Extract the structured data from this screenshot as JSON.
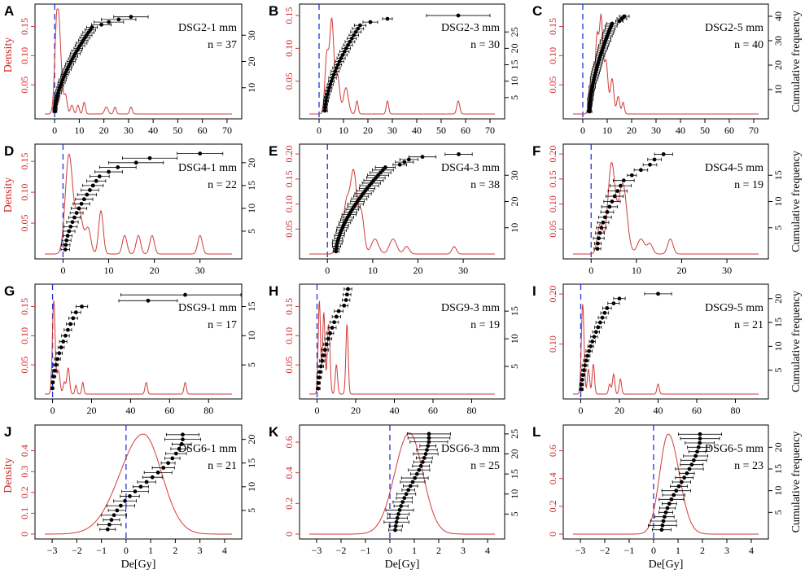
{
  "figure": {
    "x_axis_label": "De[Gy]",
    "left_axis_label": "Density",
    "right_axis_label": "Cumulative frequency"
  },
  "colors": {
    "density_curve": "#d23a3a",
    "zero_line": "#2233dd",
    "points": "#000000"
  },
  "chart_data": [
    {
      "type": "line",
      "panel": "A",
      "label": "DSG2-1 mm",
      "n_text": "n = 37",
      "n": 37,
      "xlim": [
        -4,
        72
      ],
      "xticks": [
        0,
        10,
        20,
        30,
        40,
        50,
        60,
        70
      ],
      "ylim": [
        0,
        0.18
      ],
      "yticks": [
        0.05,
        0.1,
        0.15
      ],
      "freq_ticks": [
        10,
        20,
        30
      ],
      "freq_max": 40,
      "peaks": [
        [
          1,
          0.16,
          0.9
        ],
        [
          2.3,
          0.07,
          0.9
        ],
        [
          4.5,
          0.03,
          0.6
        ],
        [
          7,
          0.015,
          0.6
        ],
        [
          9.5,
          0.015,
          0.5
        ],
        [
          12,
          0.02,
          0.5
        ],
        [
          21,
          0.012,
          0.7
        ],
        [
          24.5,
          0.012,
          0.5
        ],
        [
          31,
          0.012,
          0.5
        ]
      ],
      "last_points": [
        [
          19,
          4
        ],
        [
          22,
          6
        ],
        [
          26,
          7
        ],
        [
          31,
          7
        ]
      ]
    },
    {
      "type": "line",
      "panel": "B",
      "label": "DSG2-3 mm",
      "n_text": "n = 30",
      "n": 30,
      "xlim": [
        -4,
        72
      ],
      "xticks": [
        0,
        10,
        20,
        30,
        40,
        50,
        60,
        70
      ],
      "ylim": [
        0,
        0.16
      ],
      "yticks": [
        0.05,
        0.1,
        0.15
      ],
      "freq_ticks": [
        5,
        10,
        15,
        20,
        25
      ],
      "freq_max": 32,
      "peaks": [
        [
          3.2,
          0.09,
          0.8
        ],
        [
          5.2,
          0.14,
          0.8
        ],
        [
          7.5,
          0.06,
          0.9
        ],
        [
          11,
          0.04,
          1.0
        ],
        [
          15.5,
          0.02,
          0.5
        ],
        [
          28,
          0.02,
          0.5
        ],
        [
          57,
          0.02,
          0.6
        ]
      ],
      "last_points": [
        [
          21,
          3
        ],
        [
          28,
          2
        ],
        [
          57,
          13
        ]
      ]
    },
    {
      "type": "line",
      "panel": "C",
      "label": "DSG2-5 mm",
      "n_text": "n = 40",
      "n": 40,
      "xlim": [
        -4,
        72
      ],
      "xticks": [
        0,
        10,
        20,
        30,
        40,
        50,
        60,
        70
      ],
      "ylim": [
        0,
        0.18
      ],
      "yticks": [
        0.05,
        0.1,
        0.15
      ],
      "freq_ticks": [
        10,
        20,
        30,
        40
      ],
      "freq_max": 43,
      "peaks": [
        [
          3.5,
          0.05,
          0.8
        ],
        [
          5.8,
          0.13,
          0.7
        ],
        [
          7.5,
          0.16,
          0.7
        ],
        [
          9.5,
          0.09,
          0.8
        ],
        [
          12,
          0.06,
          0.7
        ],
        [
          14.5,
          0.03,
          0.6
        ],
        [
          16.5,
          0.02,
          0.5
        ]
      ],
      "last_points": [
        [
          15,
          1.5
        ],
        [
          16,
          2
        ],
        [
          17,
          2
        ]
      ]
    },
    {
      "type": "line",
      "panel": "D",
      "label": "DSG4-1 mm",
      "n_text": "n = 22",
      "n": 22,
      "xlim": [
        -4,
        37
      ],
      "xticks": [
        0,
        10,
        20,
        30
      ],
      "ylim": [
        0,
        0.17
      ],
      "yticks": [
        0.05,
        0.1,
        0.15
      ],
      "freq_ticks": [
        5,
        10,
        15,
        20
      ],
      "freq_max": 23,
      "peaks": [
        [
          1.3,
          0.16,
          0.8
        ],
        [
          3.5,
          0.07,
          0.8
        ],
        [
          5.5,
          0.04,
          0.6
        ],
        [
          8.3,
          0.07,
          0.5
        ],
        [
          13.5,
          0.03,
          0.5
        ],
        [
          16.5,
          0.03,
          0.5
        ],
        [
          19.5,
          0.03,
          0.5
        ],
        [
          30,
          0.03,
          0.5
        ]
      ],
      "last_points": [
        [
          10,
          3
        ],
        [
          12,
          4
        ],
        [
          16,
          6
        ],
        [
          19,
          6
        ],
        [
          30,
          5
        ]
      ]
    },
    {
      "type": "line",
      "panel": "E",
      "label": "DSG4-3 mm",
      "n_text": "n = 38",
      "n": 38,
      "xlim": [
        -4,
        37
      ],
      "xticks": [
        0,
        10,
        20,
        30
      ],
      "ylim": [
        0,
        0.21
      ],
      "yticks": [
        0.05,
        0.1,
        0.15,
        0.2
      ],
      "freq_ticks": [
        10,
        20,
        30
      ],
      "freq_max": 40,
      "peaks": [
        [
          2.5,
          0.03,
          0.6
        ],
        [
          4.2,
          0.1,
          0.7
        ],
        [
          5.8,
          0.16,
          0.7
        ],
        [
          7.5,
          0.08,
          0.6
        ],
        [
          10.5,
          0.03,
          0.8
        ],
        [
          14.5,
          0.03,
          0.8
        ],
        [
          17.5,
          0.015,
          0.6
        ],
        [
          28,
          0.015,
          0.5
        ]
      ],
      "last_points": [
        [
          16,
          1.5
        ],
        [
          17,
          2
        ],
        [
          18,
          2
        ],
        [
          21,
          3
        ],
        [
          29,
          3
        ]
      ]
    },
    {
      "type": "line",
      "panel": "F",
      "label": "DSG4-5 mm",
      "n_text": "n = 19",
      "n": 19,
      "xlim": [
        -4,
        37
      ],
      "xticks": [
        0,
        10,
        20,
        30
      ],
      "ylim": [
        0,
        0.21
      ],
      "yticks": [
        0.05,
        0.1,
        0.15,
        0.2
      ],
      "freq_ticks": [
        5,
        10,
        15
      ],
      "freq_max": 20,
      "peaks": [
        [
          2,
          0.06,
          0.6
        ],
        [
          4.5,
          0.18,
          0.8
        ],
        [
          7,
          0.14,
          0.9
        ],
        [
          11,
          0.03,
          0.8
        ],
        [
          13,
          0.02,
          0.6
        ],
        [
          17.5,
          0.03,
          0.6
        ]
      ],
      "last_points": [
        [
          9,
          1
        ],
        [
          11,
          1.5
        ],
        [
          13,
          1.5
        ],
        [
          14,
          1.5
        ],
        [
          16,
          2
        ]
      ]
    },
    {
      "type": "line",
      "panel": "G",
      "label": "DSG9-1 mm",
      "n_text": "n = 17",
      "n": 17,
      "xlim": [
        -4,
        92
      ],
      "xticks": [
        0,
        20,
        40,
        60,
        80
      ],
      "ylim": [
        0,
        0.18
      ],
      "yticks": [
        0.05,
        0.1,
        0.15
      ],
      "freq_ticks": [
        5,
        10,
        15
      ],
      "freq_max": 18,
      "peaks": [
        [
          0.6,
          0.16,
          0.7
        ],
        [
          3,
          0.04,
          0.8
        ],
        [
          6,
          0.02,
          0.6
        ],
        [
          8,
          0.045,
          0.7
        ],
        [
          12,
          0.015,
          0.5
        ],
        [
          15.5,
          0.02,
          0.5
        ],
        [
          48,
          0.02,
          0.6
        ],
        [
          68,
          0.02,
          0.6
        ]
      ],
      "last_points": [
        [
          15,
          3
        ],
        [
          49,
          15
        ],
        [
          68,
          33
        ]
      ]
    },
    {
      "type": "line",
      "panel": "H",
      "label": "DSG9-3 mm",
      "n_text": "n = 19",
      "n": 19,
      "xlim": [
        -4,
        92
      ],
      "xticks": [
        0,
        20,
        40,
        60,
        80
      ],
      "ylim": [
        0,
        0.18
      ],
      "yticks": [
        0.05,
        0.1,
        0.15
      ],
      "freq_ticks": [
        5,
        10,
        15
      ],
      "freq_max": 19,
      "peaks": [
        [
          1.2,
          0.16,
          0.6
        ],
        [
          3.5,
          0.14,
          0.6
        ],
        [
          6,
          0.12,
          0.7
        ],
        [
          10,
          0.05,
          0.6
        ],
        [
          15.5,
          0.12,
          0.6
        ]
      ],
      "last_points": [
        [
          14,
          2
        ],
        [
          15,
          2
        ],
        [
          15.5,
          2
        ],
        [
          16,
          2
        ]
      ]
    },
    {
      "type": "line",
      "panel": "I",
      "label": "DSG9-5 mm",
      "n_text": "n = 21",
      "n": 21,
      "xlim": [
        -4,
        92
      ],
      "xticks": [
        0,
        20,
        40,
        60,
        80
      ],
      "ylim": [
        0,
        0.21
      ],
      "yticks": [
        0.1,
        0.2
      ],
      "freq_ticks": [
        5,
        10,
        15,
        20
      ],
      "freq_max": 22,
      "peaks": [
        [
          1,
          0.18,
          0.7
        ],
        [
          4,
          0.05,
          0.6
        ],
        [
          6.5,
          0.06,
          0.6
        ],
        [
          15,
          0.02,
          0.6
        ],
        [
          17,
          0.04,
          0.6
        ],
        [
          20.5,
          0.03,
          0.6
        ],
        [
          40,
          0.02,
          0.6
        ]
      ],
      "last_points": [
        [
          17,
          3
        ],
        [
          20,
          3
        ],
        [
          40,
          7
        ]
      ]
    },
    {
      "type": "line",
      "panel": "J",
      "label": "DSG6-1 mm",
      "n_text": "n = 21",
      "n": 21,
      "xlim": [
        -3.3,
        4.3
      ],
      "xticks": [
        -3,
        -2,
        -1,
        0,
        1,
        2,
        3,
        4
      ],
      "ylim": [
        0,
        0.5
      ],
      "yticks": [
        0,
        0.1,
        0.2,
        0.3,
        0.4
      ],
      "freq_ticks": [
        5,
        10,
        15,
        20
      ],
      "freq_max": 22,
      "mean": 0.7,
      "sd_left": 0.95,
      "sd_right": 0.75,
      "peak": 0.48,
      "first": -1.0,
      "last": 2.3
    },
    {
      "type": "line",
      "panel": "K",
      "label": "DSG6-3 mm",
      "n_text": "n = 25",
      "n": 25,
      "xlim": [
        -3.3,
        4.3
      ],
      "xticks": [
        -3,
        -2,
        -1,
        0,
        1,
        2,
        3,
        4
      ],
      "ylim": [
        0,
        0.68
      ],
      "yticks": [
        0,
        0.2,
        0.4,
        0.6
      ],
      "freq_ticks": [
        5,
        10,
        15,
        20,
        25
      ],
      "freq_max": 26,
      "mean": 0.8,
      "sd_left": 0.6,
      "sd_right": 0.55,
      "peak": 0.66,
      "first": 0.1,
      "last": 1.6
    },
    {
      "type": "line",
      "panel": "L",
      "label": "DSG6-5 mm",
      "n_text": "n = 23",
      "n": 23,
      "xlim": [
        -3.3,
        4.3
      ],
      "xticks": [
        -3,
        -2,
        -1,
        0,
        1,
        2,
        3,
        4
      ],
      "ylim": [
        0,
        0.75
      ],
      "yticks": [
        0,
        0.2,
        0.4,
        0.6
      ],
      "freq_ticks": [
        5,
        10,
        15,
        20
      ],
      "freq_max": 24,
      "mean": 0.6,
      "sd_left": 0.35,
      "sd_right": 0.45,
      "peak": 0.72,
      "first": 0.2,
      "last": 1.9
    }
  ]
}
